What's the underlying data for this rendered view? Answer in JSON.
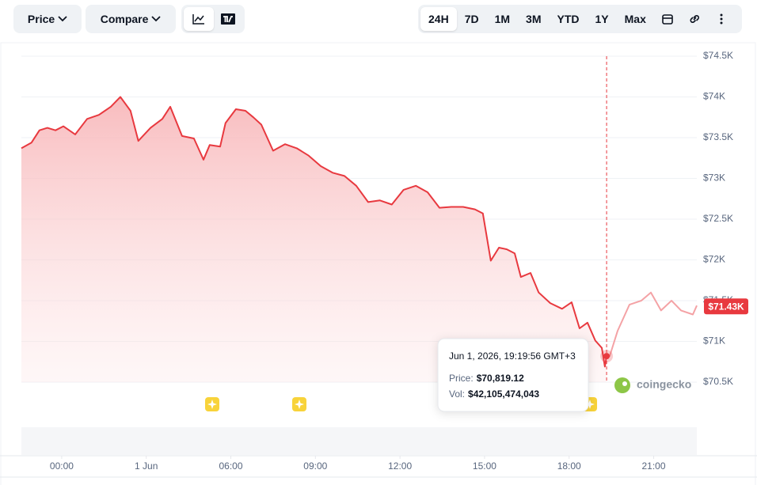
{
  "toolbar": {
    "price": "Price",
    "compare": "Compare",
    "ranges": [
      "24H",
      "7D",
      "1M",
      "3M",
      "YTD",
      "1Y",
      "Max"
    ],
    "active_range": 0
  },
  "chart_data": {
    "type": "line",
    "series": [
      {
        "color": "#e8393f",
        "x": [
          -1.43,
          -1.07,
          -0.79,
          -0.51,
          -0.22,
          0.06,
          0.48,
          0.9,
          1.32,
          1.74,
          2.08,
          2.44,
          2.72,
          3.15,
          3.57,
          3.85,
          4.27,
          4.69,
          5.03,
          5.25,
          5.62,
          5.81,
          6.18,
          6.52,
          6.8,
          7.08,
          7.5,
          7.92,
          8.34,
          8.76,
          9.19,
          9.61,
          10.03,
          10.45,
          10.87,
          11.29,
          11.71,
          12.13,
          12.56,
          12.98,
          13.4,
          13.82,
          14.24,
          14.66,
          14.94,
          15.22,
          15.51,
          15.79,
          16.07,
          16.29,
          16.63,
          16.92,
          17.33,
          17.75,
          18.09,
          18.37,
          18.65,
          18.93,
          19.16,
          19.27,
          19.33,
          19.44,
          19.72,
          20.14,
          20.56,
          20.9,
          21.26,
          21.63,
          21.97,
          22.39,
          22.53
        ],
        "values": [
          73.37,
          73.44,
          73.59,
          73.62,
          73.59,
          73.64,
          73.54,
          73.73,
          73.78,
          73.88,
          74.0,
          73.83,
          73.46,
          73.62,
          73.73,
          73.88,
          73.52,
          73.49,
          73.23,
          73.41,
          73.39,
          73.68,
          73.85,
          73.83,
          73.75,
          73.66,
          73.34,
          73.42,
          73.37,
          73.28,
          73.15,
          73.07,
          73.03,
          72.91,
          72.71,
          72.73,
          72.68,
          72.86,
          72.91,
          72.83,
          72.64,
          72.65,
          72.65,
          72.62,
          72.57,
          71.99,
          72.15,
          72.13,
          72.08,
          71.79,
          71.84,
          71.6,
          71.47,
          71.4,
          71.48,
          71.16,
          71.23,
          71.01,
          70.92,
          70.69,
          70.82,
          70.82,
          71.13,
          71.45,
          71.5,
          71.6,
          71.38,
          71.5,
          71.38,
          71.33,
          71.44
        ]
      }
    ],
    "xlim": [
      -1.43,
      22.53
    ],
    "xticks": [
      {
        "value": 0,
        "label": "00:00"
      },
      {
        "value": 3,
        "label": "1 Jun"
      },
      {
        "value": 6,
        "label": "06:00"
      },
      {
        "value": 9,
        "label": "09:00"
      },
      {
        "value": 12,
        "label": "12:00"
      },
      {
        "value": 15,
        "label": "15:00"
      },
      {
        "value": 18,
        "label": "18:00"
      },
      {
        "value": 21,
        "label": "21:00"
      }
    ],
    "ylim": [
      70.5,
      74.5
    ],
    "yticks": [
      {
        "value": 70.5,
        "label": "$70.5K"
      },
      {
        "value": 71,
        "label": "$71K"
      },
      {
        "value": 71.5,
        "label": "$71.5K"
      },
      {
        "value": 72,
        "label": "$72K"
      },
      {
        "value": 72.5,
        "label": "$72.5K"
      },
      {
        "value": 73,
        "label": "$73K"
      },
      {
        "value": 73.5,
        "label": "$73.5K"
      },
      {
        "value": 74,
        "label": "$74K"
      },
      {
        "value": 74.5,
        "label": "$74.5K"
      }
    ],
    "grid": true,
    "current_price": {
      "value": 71.43,
      "label": "$71.43K"
    },
    "tooltip": {
      "x": 19.33,
      "time": "Jun 1, 2026, 19:19:56 GMT+3",
      "price_label": "Price:",
      "price": {
        "value": 70.81912,
        "label": "$70,819.12"
      },
      "volume_label": "Vol:",
      "volume": "$42,105,474,043"
    },
    "watermark": "coingecko"
  }
}
